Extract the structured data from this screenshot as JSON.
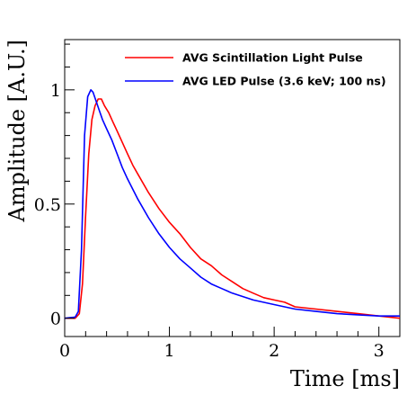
{
  "chart_data": {
    "type": "line",
    "xlabel": "Time [ms]",
    "ylabel": "Amplitude [A.U.]",
    "xlim": [
      0,
      3.2
    ],
    "ylim": [
      -0.08,
      1.22
    ],
    "x_ticks": [
      {
        "value": 0,
        "label": "0"
      },
      {
        "value": 1,
        "label": "1"
      },
      {
        "value": 2,
        "label": "2"
      },
      {
        "value": 3,
        "label": "3"
      }
    ],
    "y_ticks": [
      {
        "value": 0,
        "label": "0"
      },
      {
        "value": 0.5,
        "label": "0.5"
      },
      {
        "value": 1,
        "label": "1"
      }
    ],
    "grid": false,
    "legend_position": "top-right",
    "series": [
      {
        "name": "AVG Scintillation Light Pulse",
        "color": "#ff0000",
        "x": [
          0,
          0.1,
          0.14,
          0.17,
          0.2,
          0.23,
          0.26,
          0.29,
          0.32,
          0.35,
          0.38,
          0.42,
          0.46,
          0.5,
          0.55,
          0.6,
          0.65,
          0.7,
          0.8,
          0.9,
          1.0,
          1.1,
          1.2,
          1.3,
          1.4,
          1.5,
          1.6,
          1.7,
          1.8,
          1.9,
          2.0,
          2.1,
          2.2,
          2.4,
          2.6,
          2.8,
          3.0,
          3.2
        ],
        "y": [
          0,
          0,
          0.02,
          0.15,
          0.45,
          0.72,
          0.87,
          0.93,
          0.96,
          0.96,
          0.93,
          0.9,
          0.86,
          0.82,
          0.77,
          0.72,
          0.67,
          0.63,
          0.55,
          0.48,
          0.42,
          0.37,
          0.31,
          0.26,
          0.23,
          0.19,
          0.16,
          0.13,
          0.11,
          0.09,
          0.08,
          0.07,
          0.05,
          0.04,
          0.03,
          0.02,
          0.01,
          0.0
        ]
      },
      {
        "name": "AVG LED Pulse (3.6 keV; 100 ns)",
        "color": "#0000ff",
        "x": [
          0,
          0.1,
          0.13,
          0.16,
          0.19,
          0.22,
          0.25,
          0.27,
          0.3,
          0.33,
          0.36,
          0.4,
          0.45,
          0.5,
          0.55,
          0.6,
          0.7,
          0.8,
          0.9,
          1.0,
          1.1,
          1.2,
          1.3,
          1.4,
          1.5,
          1.6,
          1.8,
          2.0,
          2.2,
          2.4,
          2.6,
          2.8,
          3.0,
          3.2
        ],
        "y": [
          0,
          0.005,
          0.03,
          0.3,
          0.8,
          0.97,
          1.0,
          0.99,
          0.95,
          0.91,
          0.87,
          0.83,
          0.78,
          0.72,
          0.66,
          0.61,
          0.52,
          0.44,
          0.37,
          0.31,
          0.26,
          0.22,
          0.18,
          0.15,
          0.13,
          0.11,
          0.08,
          0.06,
          0.04,
          0.03,
          0.02,
          0.015,
          0.01,
          0.01
        ]
      }
    ]
  }
}
